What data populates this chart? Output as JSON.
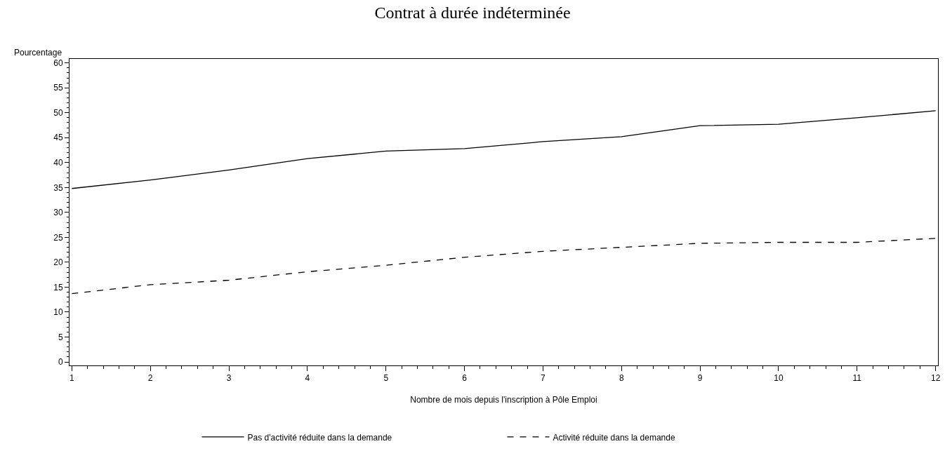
{
  "chart_data": {
    "type": "line",
    "title": "Contrat à durée indéterminée",
    "xlabel": "Nombre de mois depuis l'inscription à Pôle Emploi",
    "ylabel": "Pourcentage",
    "x": [
      1,
      2,
      3,
      4,
      5,
      6,
      7,
      8,
      9,
      10,
      11,
      12
    ],
    "xlim": [
      0.97,
      12.03
    ],
    "xticks": [
      1,
      2,
      3,
      4,
      5,
      6,
      7,
      8,
      9,
      10,
      11,
      12
    ],
    "ylim": [
      -0.7,
      60.8
    ],
    "yticks": [
      0,
      5,
      10,
      15,
      20,
      25,
      30,
      35,
      40,
      45,
      50,
      55,
      60
    ],
    "grid": false,
    "legend": "bottom",
    "marker": "none",
    "series": [
      {
        "name": "Pas d'activité réduite dans la demande",
        "color": "#000000",
        "line_style": "solid",
        "values": [
          34.8,
          36.5,
          38.5,
          40.8,
          42.3,
          42.8,
          44.2,
          45.2,
          47.4,
          47.7,
          49.0,
          50.4
        ]
      },
      {
        "name": "Activité réduite dans la demande",
        "color": "#000000",
        "line_style": "dashed",
        "values": [
          13.7,
          15.5,
          16.4,
          18.1,
          19.4,
          21.0,
          22.2,
          23.0,
          23.8,
          24.0,
          24.0,
          24.8
        ]
      }
    ]
  }
}
